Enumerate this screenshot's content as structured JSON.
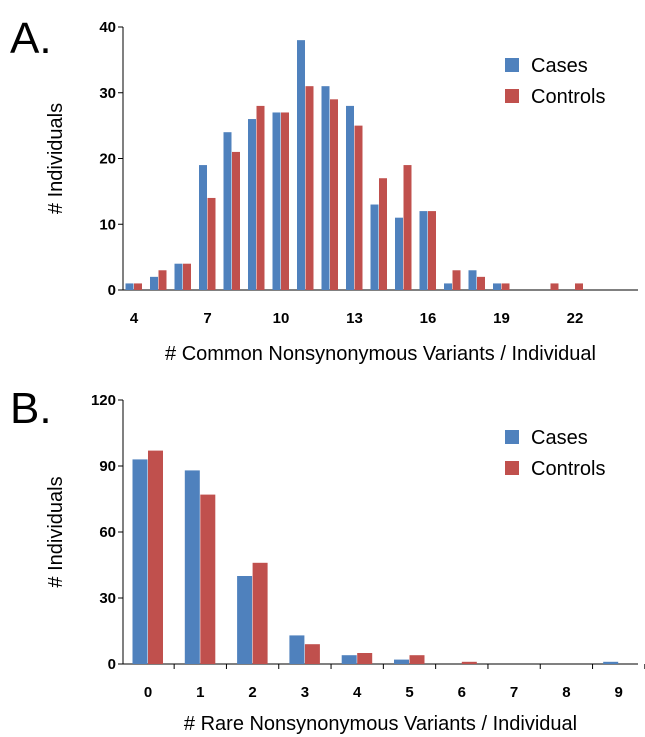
{
  "chart_data": [
    {
      "panel_label": "A.",
      "type": "bar",
      "xlabel": "# Common Nonsynonymous Variants / Individual",
      "ylabel": "# Individuals",
      "ylim": [
        0,
        40
      ],
      "yticks": [
        0,
        10,
        20,
        30,
        40
      ],
      "categories": [
        4,
        5,
        6,
        7,
        8,
        9,
        10,
        11,
        12,
        13,
        14,
        15,
        16,
        17,
        18,
        19,
        20,
        21,
        22
      ],
      "xtick_labels": [
        "4",
        "7",
        "10",
        "13",
        "16",
        "19",
        "22"
      ],
      "legend_position": "top-right",
      "series": [
        {
          "name": "Cases",
          "color": "#4F81BD",
          "values": [
            1,
            2,
            4,
            19,
            24,
            26,
            27,
            38,
            31,
            28,
            13,
            11,
            12,
            1,
            3,
            1,
            0,
            0,
            0
          ]
        },
        {
          "name": "Controls",
          "color": "#C0504D",
          "values": [
            1,
            3,
            4,
            14,
            21,
            28,
            27,
            31,
            29,
            25,
            17,
            19,
            12,
            3,
            2,
            1,
            0,
            1,
            1
          ]
        }
      ]
    },
    {
      "panel_label": "B.",
      "type": "bar",
      "xlabel": "# Rare Nonsynonymous Variants / Individual",
      "ylabel": "# Individuals",
      "ylim": [
        0,
        120
      ],
      "yticks": [
        0,
        30,
        60,
        90,
        120
      ],
      "categories": [
        0,
        1,
        2,
        3,
        4,
        5,
        6,
        7,
        8,
        9
      ],
      "xtick_labels": [
        "0",
        "1",
        "2",
        "3",
        "4",
        "5",
        "6",
        "7",
        "8",
        "9"
      ],
      "legend_position": "top-right",
      "series": [
        {
          "name": "Cases",
          "color": "#4F81BD",
          "values": [
            93,
            88,
            40,
            13,
            4,
            2,
            0,
            0,
            0,
            1
          ]
        },
        {
          "name": "Controls",
          "color": "#C0504D",
          "values": [
            97,
            77,
            46,
            9,
            5,
            4,
            1,
            0,
            0,
            0
          ]
        }
      ]
    }
  ]
}
